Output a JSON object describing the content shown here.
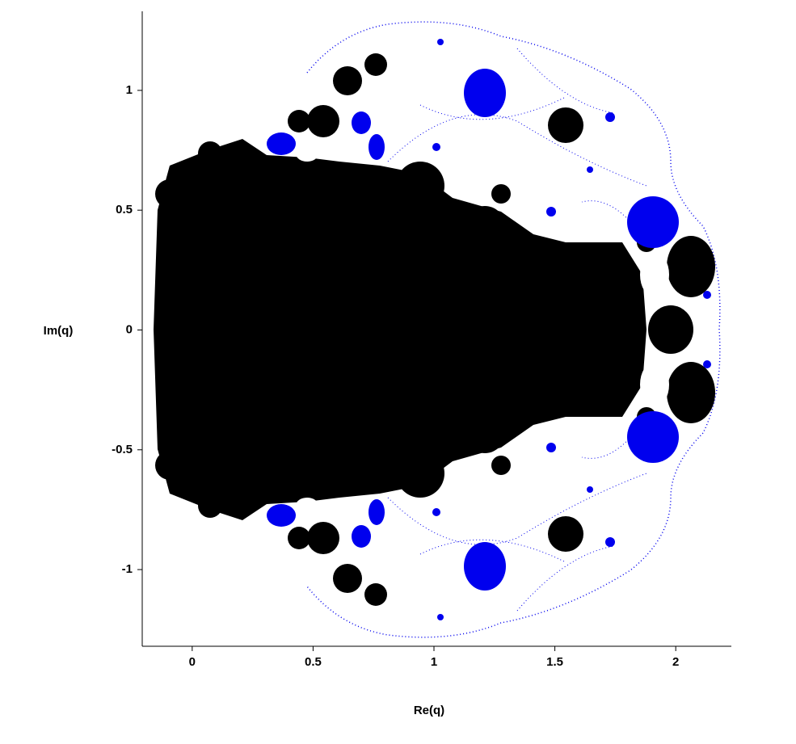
{
  "chart_data": {
    "type": "fractal",
    "x_label": "Re(q)",
    "y_label": "Im(q)",
    "xlim": [
      -0.2,
      2.23
    ],
    "ylim": [
      -1.32,
      1.33
    ],
    "xticks": [
      0,
      0.5,
      1,
      1.5,
      2
    ],
    "yticks": [
      -1,
      -0.5,
      0,
      0.5,
      1
    ]
  }
}
